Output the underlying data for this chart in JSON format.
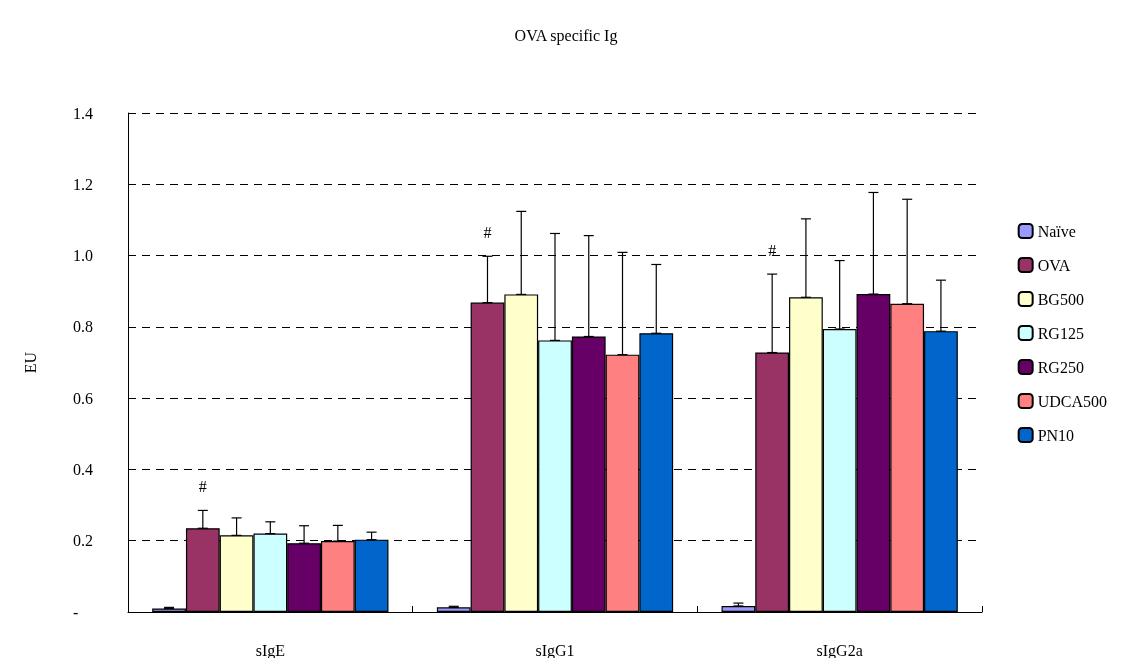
{
  "chart_data": {
    "type": "bar",
    "title": "OVA specific Ig",
    "ylabel": "EU",
    "categories": [
      "sIgE",
      "sIgG1",
      "sIgG2a"
    ],
    "series": [
      {
        "name": "Naïve",
        "color": "#9999ff",
        "values": [
          0.01,
          0.013,
          0.017
        ],
        "errors": [
          [
            0.01,
            0.013
          ],
          [
            0.013,
            0.016
          ],
          [
            0.017,
            0.025
          ]
        ]
      },
      {
        "name": "OVA",
        "color": "#993366",
        "values": [
          0.235,
          0.868,
          0.728
        ],
        "errors": [
          [
            0.235,
            0.285
          ],
          [
            0.868,
            0.998
          ],
          [
            0.728,
            0.948
          ]
        ]
      },
      {
        "name": "BG500",
        "color": "#ffffcc",
        "values": [
          0.215,
          0.891,
          0.883
        ],
        "errors": [
          [
            0.215,
            0.264
          ],
          [
            0.891,
            1.124
          ],
          [
            0.883,
            1.103
          ]
        ]
      },
      {
        "name": "RG125",
        "color": "#ccffff",
        "values": [
          0.22,
          0.762,
          0.794
        ],
        "errors": [
          [
            0.22,
            0.253
          ],
          [
            0.762,
            1.062
          ],
          [
            0.794,
            0.986
          ]
        ]
      },
      {
        "name": "RG250",
        "color": "#660066",
        "values": [
          0.193,
          0.773,
          0.892
        ],
        "errors": [
          [
            0.193,
            0.242
          ],
          [
            0.773,
            1.056
          ],
          [
            0.892,
            1.177
          ]
        ]
      },
      {
        "name": "UDCA500",
        "color": "#ff8080",
        "values": [
          0.199,
          0.722,
          0.865
        ],
        "errors": [
          [
            0.199,
            0.243
          ],
          [
            0.722,
            1.009
          ],
          [
            0.865,
            1.158
          ]
        ]
      },
      {
        "name": "PN10",
        "color": "#0066cc",
        "values": [
          0.203,
          0.782,
          0.788
        ],
        "errors": [
          [
            0.203,
            0.224
          ],
          [
            0.782,
            0.975
          ],
          [
            0.788,
            0.931
          ]
        ]
      }
    ],
    "ylim": [
      0,
      1.4
    ],
    "yticks": [
      {
        "value": 0,
        "label": "-"
      },
      {
        "value": 0.2,
        "label": "0.2"
      },
      {
        "value": 0.4,
        "label": "0.4"
      },
      {
        "value": 0.6,
        "label": "0.6"
      },
      {
        "value": 0.8,
        "label": "0.8"
      },
      {
        "value": 1,
        "label": "1.0"
      },
      {
        "value": 1.2,
        "label": "1.2"
      },
      {
        "value": 1.4,
        "label": "1.4"
      }
    ],
    "grid": "y",
    "legend": "right",
    "annotations": [
      "#",
      "#",
      "#"
    ]
  }
}
